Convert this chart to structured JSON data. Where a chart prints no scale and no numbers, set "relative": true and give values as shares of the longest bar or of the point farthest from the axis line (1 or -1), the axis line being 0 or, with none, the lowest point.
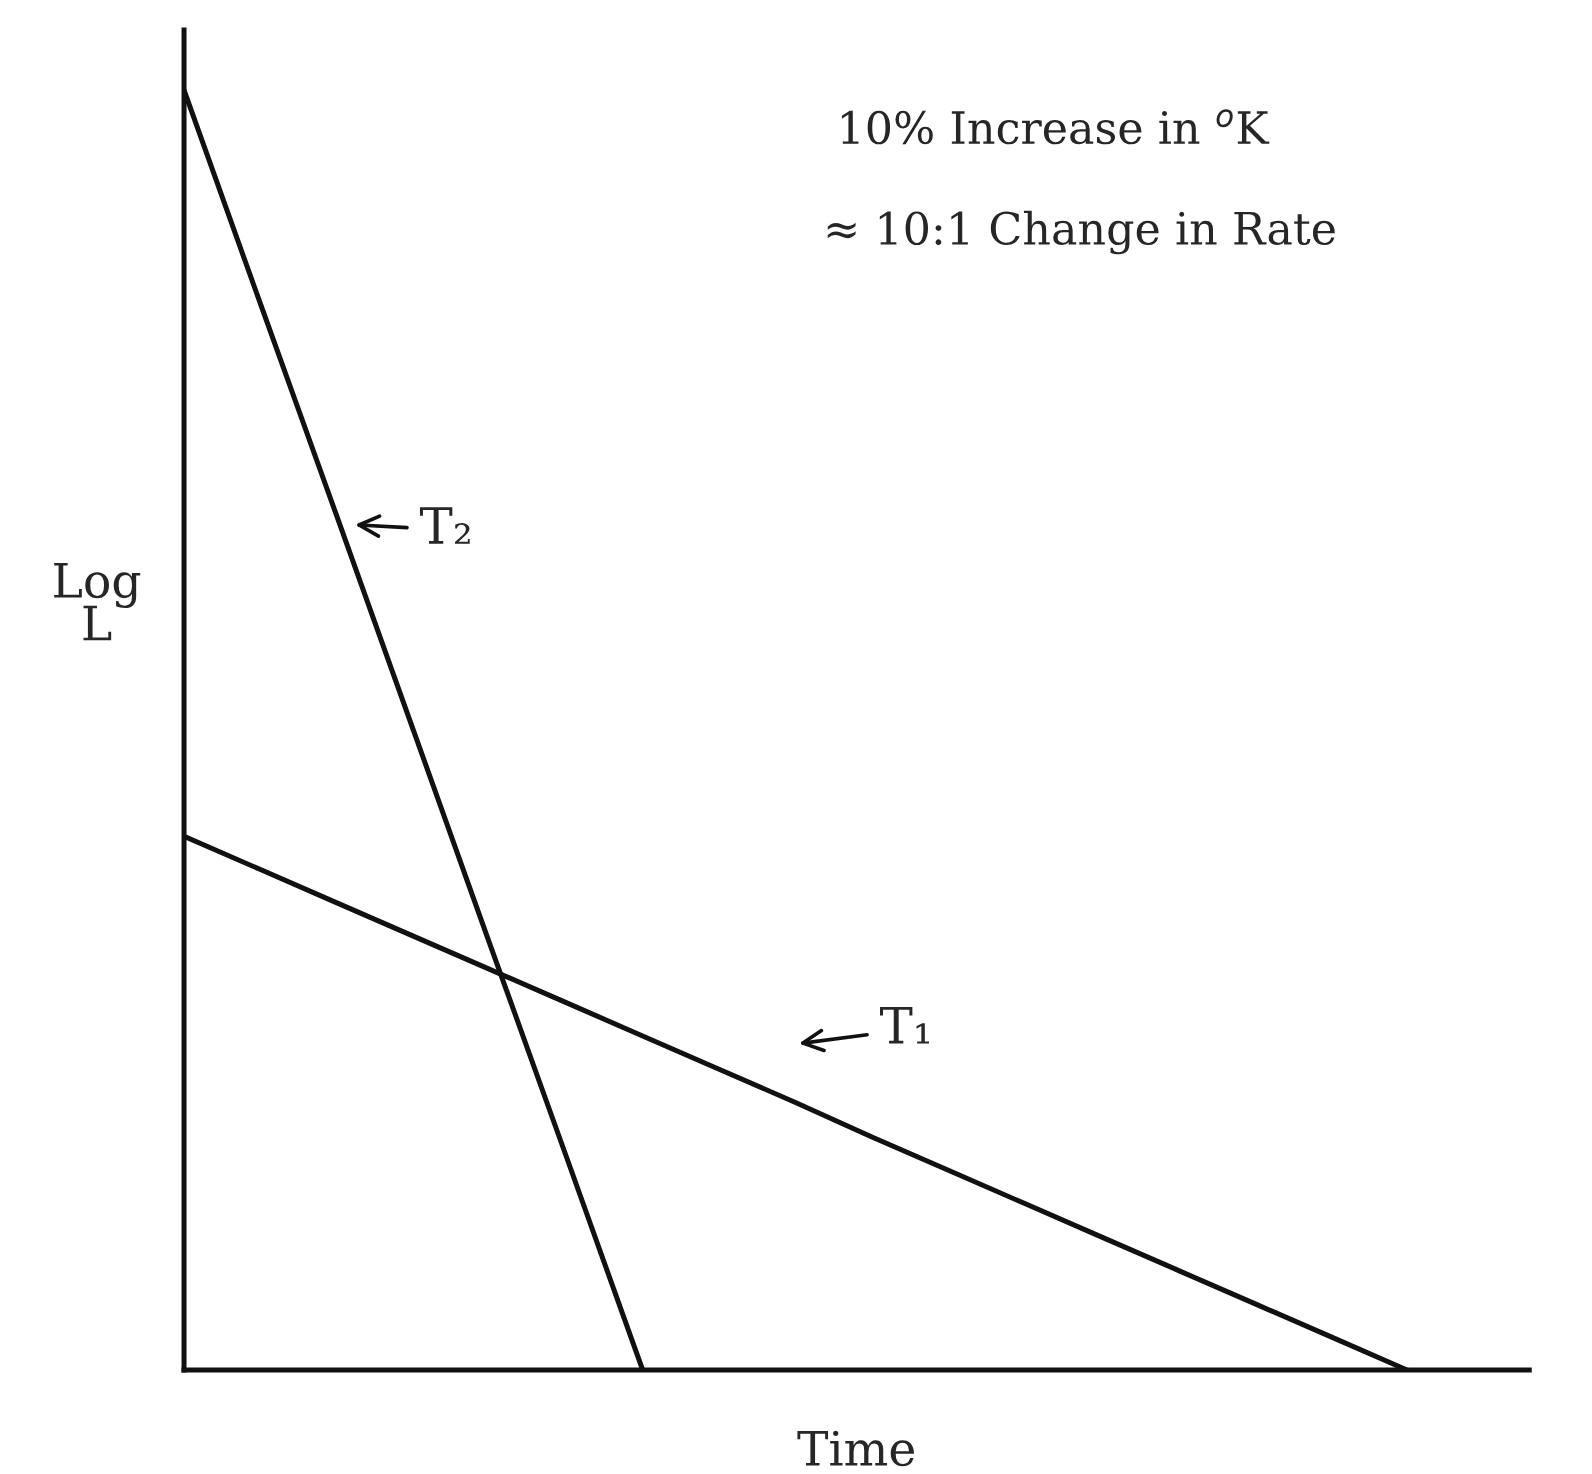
{
  "chart_data": {
    "type": "line",
    "relative": true,
    "xlabel": "Time",
    "ylabel": "Log\nL",
    "categories": [
      null,
      null,
      null,
      null,
      null,
      null,
      null,
      null,
      null,
      null,
      null,
      null,
      null,
      null,
      null,
      null,
      null
    ],
    "marker": "none",
    "line_style": "solid",
    "series": [
      {
        "values": [
          1,
          0.833,
          0.667,
          0.5,
          0.333,
          0.167,
          0,
          null,
          null,
          null,
          null,
          null,
          null,
          null,
          null,
          null,
          null
        ],
        "color": "#111111"
      },
      {
        "values": [
          0.417,
          0.391,
          0.365,
          0.339,
          0.313,
          0.287,
          0.261,
          0.235,
          0.209,
          0.182,
          0.156,
          0.13,
          0.104,
          0.078,
          0.052,
          0.026,
          0
        ],
        "color": "#111111"
      }
    ],
    "annotations": [
      "10% Increase in $^{o}$K",
      "≈ 10:1 Change in Rate",
      "T₂",
      "T₁"
    ]
  }
}
